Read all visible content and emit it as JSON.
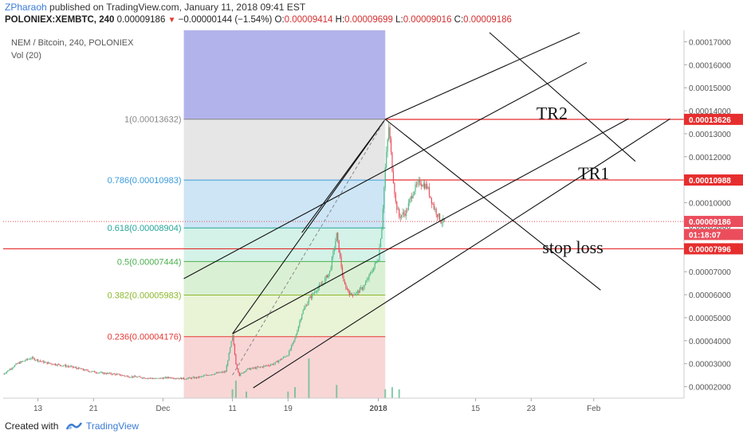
{
  "header": {
    "author": "ZPharaoh",
    "published": "published on TradingView.com, January 11, 2018 09:41 EST",
    "symbol": "POLONIEX:XEMBTC, 240",
    "last": "0.00009186",
    "change_arrow": "▼",
    "change": "−0.00000144 (−1.54%)",
    "open_label": "O:",
    "open": "0.00009414",
    "high_label": "H:",
    "high": "0.00009699",
    "low_label": "L:",
    "low": "0.00009016",
    "close_label": "C:",
    "close": "0.00009186"
  },
  "legend": {
    "title": "NEM / Bitcoin, 240, POLONIEX",
    "vol": "Vol (20)"
  },
  "footer": {
    "created_with": "Created with",
    "brand": "TradingView"
  },
  "colors": {
    "up": "#53b987",
    "down": "#eb4d5c",
    "fib_purple": "#9999e6",
    "fib_grey": "#dddddd",
    "fib_blue": "#bcdcf2",
    "fib_teal": "#c6eee0",
    "fib_green": "#cdebc6",
    "fib_yellowgreen": "#e2efc8",
    "fib_red": "#f5c8c8",
    "red_line": "#e62e2e",
    "trendline": "#111111"
  },
  "chart_data": {
    "type": "candlestick",
    "ylim": [
      1.5e-05,
      0.000175
    ],
    "y_ticks": [
      "0.00002000",
      "0.00003000",
      "0.00004000",
      "0.00005000",
      "0.00006000",
      "0.00007000",
      "0.00008000",
      "0.00009000",
      "0.00010000",
      "0.00011000",
      "0.00012000",
      "0.00013000",
      "0.00014000",
      "0.00015000",
      "0.00016000",
      "0.00017000"
    ],
    "y_tick_values": [
      2e-05,
      3e-05,
      4e-05,
      5e-05,
      6e-05,
      7e-05,
      8e-05,
      9e-05,
      0.0001,
      0.00011,
      0.00012,
      0.00013,
      0.00014,
      0.00015,
      0.00016,
      0.00017
    ],
    "x_ticks": [
      "13",
      "21",
      "Dec",
      "11",
      "19",
      "2018",
      "15",
      "23",
      "Feb"
    ],
    "x_tick_days": [
      -18,
      -10,
      0,
      10,
      18,
      31,
      45,
      53,
      62
    ],
    "x_range_days": [
      -23,
      75
    ],
    "fib_levels": [
      {
        "label": "1(0.00013632)",
        "value": 0.00013632,
        "label_color": "#888888"
      },
      {
        "label": "0.786(0.00010983)",
        "value": 0.00010983,
        "label_color": "#3a9bdc"
      },
      {
        "label": "0.618(0.00008904)",
        "value": 8.904e-05,
        "label_color": "#26a69a"
      },
      {
        "label": "0.5(0.00007444)",
        "value": 7.444e-05,
        "label_color": "#4caf50"
      },
      {
        "label": "0.382(0.00005983)",
        "value": 5.983e-05,
        "label_color": "#8bb82b"
      },
      {
        "label": "0.236(0.00004176)",
        "value": 4.176e-05,
        "label_color": "#e53935"
      }
    ],
    "fib_extra_bands": [
      {
        "from": 0.00013632,
        "to": 0.000175,
        "color": "#9999e6"
      }
    ],
    "fib_range_days": [
      3,
      32
    ],
    "price_labels": [
      {
        "text": "0.00013626",
        "value": 0.00013626,
        "color": "#e62e2e"
      },
      {
        "text": "0.00010988",
        "value": 0.00010988,
        "color": "#e62e2e"
      },
      {
        "text": "0.00009186",
        "value": 9.186e-05,
        "color": "#eb4d5c"
      },
      {
        "text": "01:18:07",
        "value": 8.62e-05,
        "color": "#eb4d5c"
      },
      {
        "text": "0.00007996",
        "value": 7.996e-05,
        "color": "#e62e2e"
      }
    ],
    "horizontal_lines": [
      {
        "value": 0.00013626,
        "from_day": 32,
        "label": ""
      },
      {
        "value": 0.00010988,
        "from_day": 32,
        "label": ""
      },
      {
        "value": 7.996e-05,
        "from_day": -23,
        "label": ""
      }
    ],
    "current_price": 9.186e-05,
    "annotations": [
      {
        "text": "TR2",
        "day": 56,
        "value": 0.0001363
      },
      {
        "text": "TR1",
        "day": 62,
        "value": 0.0001103
      },
      {
        "text": "stop loss",
        "day": 59,
        "value": 7.8e-05
      }
    ],
    "trendlines": [
      {
        "from": [
          3,
          6.7e-05
        ],
        "to": [
          61,
          0.000161
        ]
      },
      {
        "from": [
          10,
          4.3e-05
        ],
        "to": [
          67,
          0.0001365
        ]
      },
      {
        "from": [
          13,
          1.95e-05
        ],
        "to": [
          73,
          0.0001365
        ]
      },
      {
        "from": [
          32,
          0.0001363
        ],
        "to": [
          60,
          0.000174
        ]
      },
      {
        "from": [
          32,
          0.0001363
        ],
        "to": [
          63,
          6.2e-05
        ]
      },
      {
        "from": [
          47,
          0.000174
        ],
        "to": [
          68,
          0.000118
        ]
      },
      {
        "from": [
          10,
          4.3e-05
        ],
        "to": [
          32,
          0.0001363
        ]
      },
      {
        "from": [
          20,
          8.7e-05
        ],
        "to": [
          32,
          0.0001363
        ]
      }
    ],
    "dashed_line": {
      "from": [
        10,
        2.5e-05
      ],
      "to": [
        32,
        0.0001363
      ]
    },
    "price_path": [
      [
        -23,
        2.55e-05
      ],
      [
        -21,
        3e-05
      ],
      [
        -19,
        3.25e-05
      ],
      [
        -17,
        3.05e-05
      ],
      [
        -15,
        2.95e-05
      ],
      [
        -13,
        2.85e-05
      ],
      [
        -11,
        2.7e-05
      ],
      [
        -9,
        2.6e-05
      ],
      [
        -7,
        2.55e-05
      ],
      [
        -5,
        2.45e-05
      ],
      [
        -3,
        2.4e-05
      ],
      [
        -1,
        2.35e-05
      ],
      [
        1,
        2.4e-05
      ],
      [
        3,
        2.35e-05
      ],
      [
        5,
        2.4e-05
      ],
      [
        7,
        2.55e-05
      ],
      [
        9,
        2.65e-05
      ],
      [
        10,
        4.2e-05
      ],
      [
        10.5,
        3e-05
      ],
      [
        11,
        2.5e-05
      ],
      [
        12,
        2.75e-05
      ],
      [
        14,
        2.85e-05
      ],
      [
        16,
        3e-05
      ],
      [
        18,
        3.4e-05
      ],
      [
        19,
        4.1e-05
      ],
      [
        20,
        5.2e-05
      ],
      [
        21,
        5.8e-05
      ],
      [
        22,
        6.2e-05
      ],
      [
        23,
        6.5e-05
      ],
      [
        24,
        7e-05
      ],
      [
        25,
        8.6e-05
      ],
      [
        25.5,
        7.6e-05
      ],
      [
        26,
        6.5e-05
      ],
      [
        27,
        6e-05
      ],
      [
        28,
        6.1e-05
      ],
      [
        29,
        6.4e-05
      ],
      [
        30,
        7e-05
      ],
      [
        31,
        7.6e-05
      ],
      [
        31.5,
        9e-05
      ],
      [
        32,
        0.000115
      ],
      [
        32.5,
        0.000133
      ],
      [
        33,
        0.000115
      ],
      [
        33.5,
        0.0001
      ],
      [
        34,
        9.4e-05
      ],
      [
        35,
        9.6e-05
      ],
      [
        36,
        0.000105
      ],
      [
        37,
        0.000109
      ],
      [
        38,
        0.000107
      ],
      [
        39,
        9.8e-05
      ],
      [
        40,
        9.2e-05
      ],
      [
        40.5,
        9.19e-05
      ]
    ],
    "volume_bars": [
      [
        10,
        0.04
      ],
      [
        10.5,
        0.08
      ],
      [
        12,
        0.03
      ],
      [
        18,
        0.03
      ],
      [
        19,
        0.05
      ],
      [
        21,
        0.18
      ],
      [
        25,
        0.06
      ],
      [
        32,
        0.04
      ],
      [
        33,
        0.05
      ],
      [
        34,
        0.04
      ]
    ]
  }
}
